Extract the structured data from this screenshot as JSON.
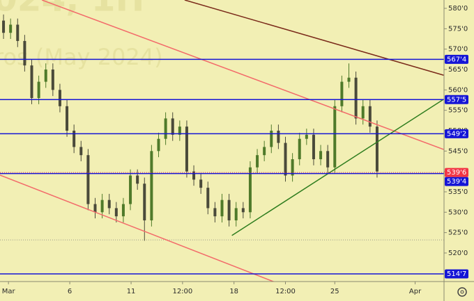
{
  "chart_data": {
    "type": "candlestick",
    "watermark": "024, 1H",
    "watermark_sub": "ros (May 2024)",
    "x": [
      1,
      3,
      5,
      7,
      9,
      11,
      13,
      15,
      17,
      19,
      21,
      23,
      25,
      27,
      29,
      31,
      33,
      35,
      37,
      39,
      41,
      43,
      45,
      47,
      49,
      51,
      53,
      55,
      57,
      59,
      61,
      63,
      65,
      67,
      69,
      71,
      73,
      75,
      77,
      79,
      81,
      83,
      85,
      87,
      89,
      91,
      93,
      95,
      97,
      99,
      101,
      103,
      105,
      107
    ],
    "open": [
      577,
      574,
      576,
      572,
      566,
      558,
      562,
      565,
      560,
      556,
      550,
      546,
      544,
      532,
      530,
      533,
      531,
      529,
      532,
      539,
      537,
      528,
      545,
      548,
      553,
      549,
      551,
      540,
      538,
      536,
      531,
      529,
      533,
      528,
      531,
      530,
      541,
      544,
      546,
      550,
      547,
      539,
      543,
      548,
      549,
      543,
      545,
      541,
      556,
      562,
      563,
      553,
      556,
      551
    ],
    "high": [
      578.5,
      577.5,
      577.5,
      573.5,
      567.5,
      563.5,
      566.5,
      566.5,
      561.5,
      557.5,
      551.5,
      547.5,
      545.5,
      533.5,
      534.5,
      534.5,
      532.5,
      533.5,
      540.5,
      540.5,
      538.5,
      546.5,
      549.5,
      554.5,
      554.5,
      552.5,
      552.5,
      541.5,
      539.5,
      537.5,
      532.5,
      534.5,
      534.5,
      532.5,
      532.5,
      542.5,
      545.5,
      547.5,
      551.5,
      551.5,
      548.5,
      544.5,
      549.5,
      550.5,
      550.5,
      546.5,
      546.5,
      557.5,
      563.5,
      566.5,
      564.5,
      557.5,
      557.5,
      552.5
    ],
    "low": [
      572.5,
      572.5,
      570.5,
      564.5,
      556.5,
      556.5,
      560.5,
      558.5,
      554.5,
      548.5,
      544.5,
      542.5,
      530.5,
      528.5,
      528.5,
      529.5,
      527.5,
      527.5,
      530.5,
      535.5,
      523,
      526.5,
      543.5,
      546.5,
      547.5,
      547.5,
      538.5,
      536.5,
      534.5,
      529.5,
      527.5,
      527.5,
      526.5,
      526.5,
      528.5,
      528.5,
      539.5,
      542.5,
      544.5,
      545.5,
      537.5,
      537.5,
      541.5,
      546.5,
      541.5,
      541.5,
      539.5,
      539.5,
      554.5,
      560.5,
      551.5,
      551.5,
      549.5,
      538.5
    ],
    "close": [
      574,
      576,
      572,
      566,
      558,
      562,
      565,
      560,
      556,
      550,
      546,
      544,
      532,
      530,
      533,
      531,
      529,
      532,
      539,
      537,
      528,
      545,
      548,
      553,
      549,
      551,
      540,
      538,
      536,
      531,
      529,
      533,
      528,
      531,
      530,
      541,
      544,
      546,
      550,
      547,
      539,
      543,
      548,
      549,
      543,
      545,
      541,
      556,
      562,
      563,
      553,
      556,
      551,
      540
    ],
    "up_color": "#4f7a2a",
    "down_color": "#4a4a3a",
    "xlim": [
      0,
      126
    ],
    "ylim": [
      513.0,
      582.05
    ],
    "xticks": [
      {
        "value": 2.4,
        "label": "Mar"
      },
      {
        "value": 19.8,
        "label": "6"
      },
      {
        "value": 37.2,
        "label": "11"
      },
      {
        "value": 51.8,
        "label": "12:00"
      },
      {
        "value": 66.4,
        "label": "18"
      },
      {
        "value": 81,
        "label": "12:00"
      },
      {
        "value": 95,
        "label": "25"
      },
      {
        "value": 117.8,
        "label": "Apr"
      }
    ],
    "yticks": [
      {
        "value": 520,
        "label": "520'0"
      },
      {
        "value": 525,
        "label": "525'0"
      },
      {
        "value": 530,
        "label": "530'0"
      },
      {
        "value": 535,
        "label": "535'0"
      },
      {
        "value": 540,
        "label": "540'0"
      },
      {
        "value": 545,
        "label": "545'0"
      },
      {
        "value": 550,
        "label": "550'0"
      },
      {
        "value": 555,
        "label": "555'0"
      },
      {
        "value": 560,
        "label": "560'0"
      },
      {
        "value": 565,
        "label": "565'0"
      },
      {
        "value": 570,
        "label": "570'0"
      },
      {
        "value": 575,
        "label": "575'0"
      },
      {
        "value": 580,
        "label": "580'0"
      }
    ],
    "levels": [
      {
        "value": 567.5,
        "label": "567'4"
      },
      {
        "value": 557.625,
        "label": "557'5"
      },
      {
        "value": 549.25,
        "label": "549'2"
      },
      {
        "value": 539.5,
        "label": "539'4"
      },
      {
        "value": 514.875,
        "label": "514'7"
      }
    ],
    "level_color": "#1515d6",
    "current_price": {
      "value": 539.75,
      "label": "539'6"
    },
    "current_color": "#f23645",
    "dotted_lines": [
      523.2
    ],
    "trendlines": [
      {
        "color": "#f36a6a",
        "x": [
          11.9,
          125.9
        ],
        "y": [
          582.05,
          545.4
        ]
      },
      {
        "color": "#f36a6a",
        "x": [
          0,
          79.05
        ],
        "y": [
          539.1,
          512.5
        ]
      },
      {
        "color": "#7a2a1a",
        "x": [
          52.4,
          125.9
        ],
        "y": [
          582.05,
          563.6
        ]
      },
      {
        "color": "#2e7d1e",
        "x": [
          65.8,
          125.9
        ],
        "y": [
          524.3,
          557.7
        ]
      }
    ]
  }
}
